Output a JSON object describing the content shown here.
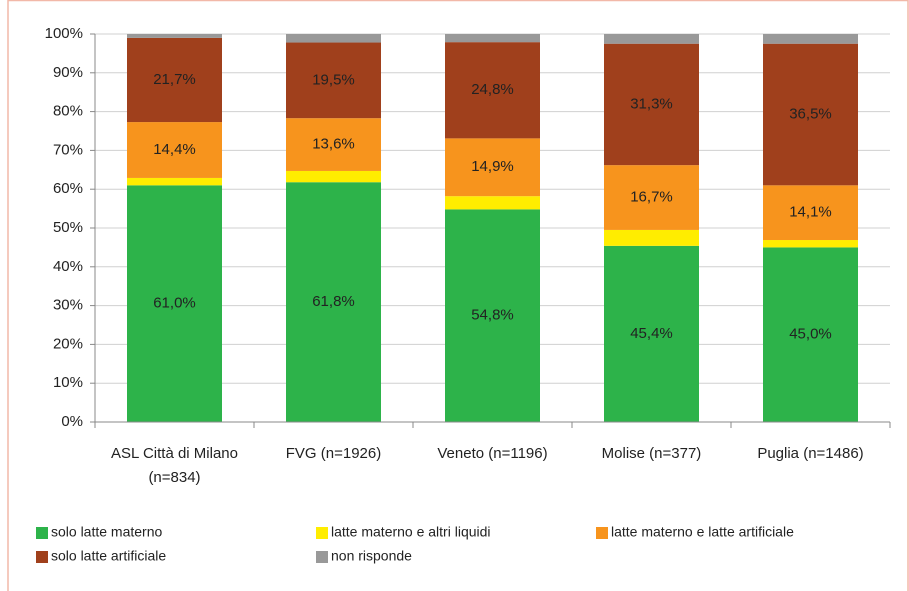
{
  "chart_data": {
    "type": "stacked_bar",
    "categories": [
      "ASL Città di Milano (n=834)",
      "FVG (n=1926)",
      "Veneto (n=1196)",
      "Molise (n=377)",
      "Puglia (n=1486)"
    ],
    "series": [
      {
        "name": "solo latte materno",
        "color": "#2db34a",
        "values": [
          61.0,
          61.8,
          54.8,
          45.4,
          45.0
        ],
        "value_labels": [
          "61,0%",
          "61,8%",
          "54,8%",
          "45,4%",
          "45,0%"
        ]
      },
      {
        "name": "latte materno e altri liquidi",
        "color": "#ffed00",
        "values": [
          1.9,
          2.9,
          3.4,
          4.1,
          1.9
        ]
      },
      {
        "name": "latte materno e latte artificiale",
        "color": "#f7941d",
        "values": [
          14.4,
          13.6,
          14.9,
          16.7,
          14.1
        ],
        "value_labels": [
          "14,4%",
          "13,6%",
          "14,9%",
          "16,7%",
          "14,1%"
        ]
      },
      {
        "name": "solo latte artificiale",
        "color": "#a0401c",
        "values": [
          21.7,
          19.5,
          24.8,
          31.3,
          36.5
        ],
        "value_labels": [
          "21,7%",
          "19,5%",
          "24,8%",
          "31,3%",
          "36,5%"
        ]
      },
      {
        "name": "non risponde",
        "color": "#999999",
        "values": [
          1.0,
          2.2,
          2.1,
          2.5,
          2.5
        ]
      }
    ],
    "ylim": [
      0,
      100
    ],
    "yticks": [
      {
        "value": 0,
        "label": "0%"
      },
      {
        "value": 10,
        "label": "10%"
      },
      {
        "value": 20,
        "label": "20%"
      },
      {
        "value": 30,
        "label": "30%"
      },
      {
        "value": 40,
        "label": "40%"
      },
      {
        "value": 50,
        "label": "50%"
      },
      {
        "value": 60,
        "label": "60%"
      },
      {
        "value": 70,
        "label": "70%"
      },
      {
        "value": 80,
        "label": "80%"
      },
      {
        "value": 90,
        "label": "90%"
      },
      {
        "value": 100,
        "label": "100%"
      }
    ],
    "grid": true
  }
}
